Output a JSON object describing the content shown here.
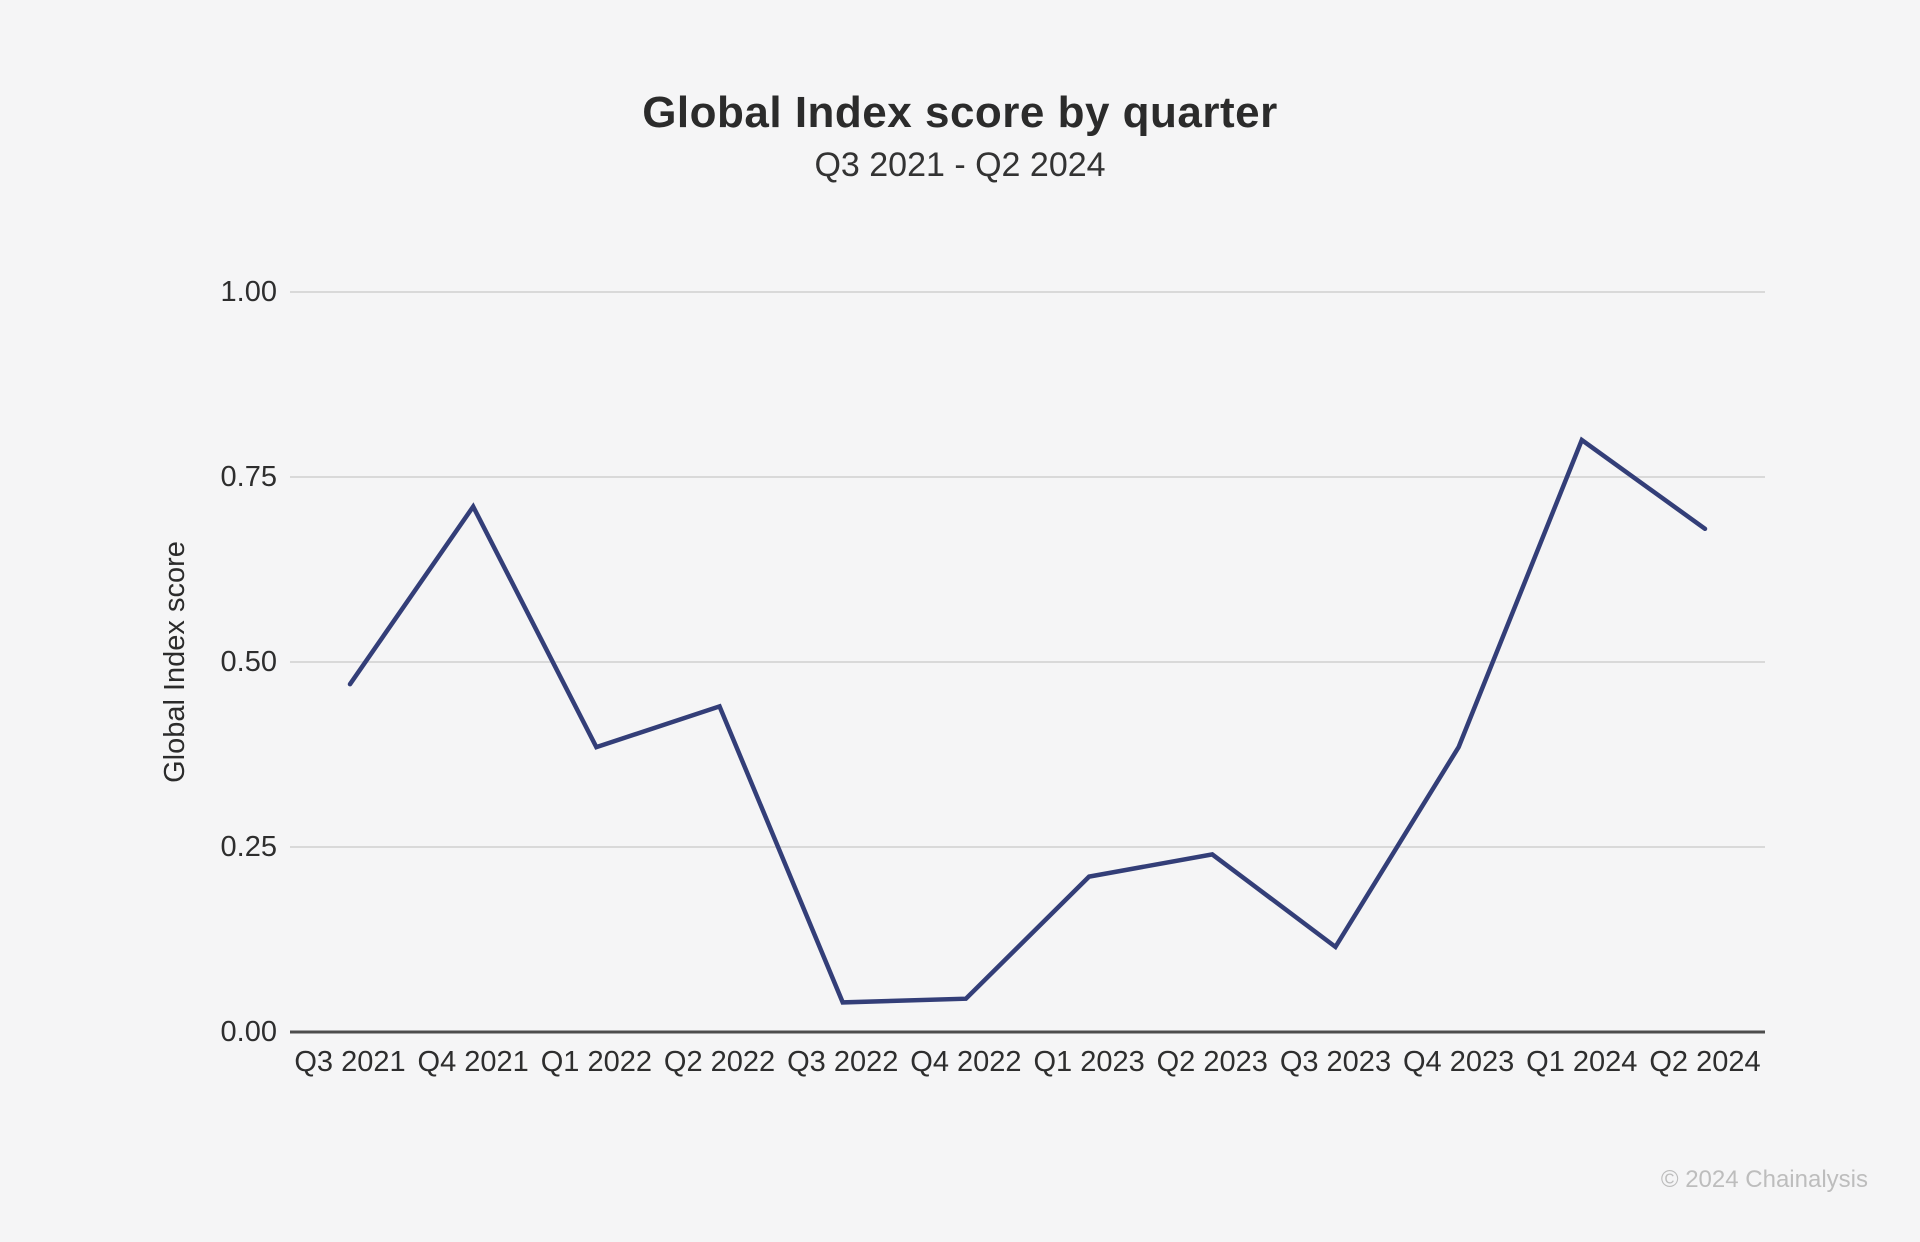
{
  "page": {
    "background_color": "#f5f5f6",
    "footer_text": "© 2024 Chainalysis",
    "footer_color": "#bdbdbd"
  },
  "chart_data": {
    "type": "line",
    "title": "Global Index score by quarter",
    "subtitle": "Q3 2021 - Q2 2024",
    "xlabel": "",
    "ylabel": "Global Index score",
    "categories": [
      "Q3 2021",
      "Q4 2021",
      "Q1 2022",
      "Q2 2022",
      "Q3 2022",
      "Q4 2022",
      "Q1 2023",
      "Q2 2023",
      "Q3 2023",
      "Q4 2023",
      "Q1 2024",
      "Q2 2024"
    ],
    "series": [
      {
        "name": "Global Index score",
        "values": [
          0.47,
          0.71,
          0.385,
          0.44,
          0.04,
          0.045,
          0.21,
          0.24,
          0.115,
          0.385,
          0.8,
          0.68
        ]
      }
    ],
    "ylim": [
      0,
      1
    ],
    "yticks": [
      0,
      0.25,
      0.5,
      0.75,
      1
    ],
    "ytick_labels": [
      "0.00",
      "0.25",
      "0.50",
      "0.75",
      "1.00"
    ],
    "grid": true,
    "legend": false,
    "line_color": "#333e78",
    "grid_color": "#d9d9d9",
    "axis_color": "#4d4d4d",
    "tick_text_color": "#2e2e2e",
    "axis_title_color": "#2b2b2b"
  }
}
